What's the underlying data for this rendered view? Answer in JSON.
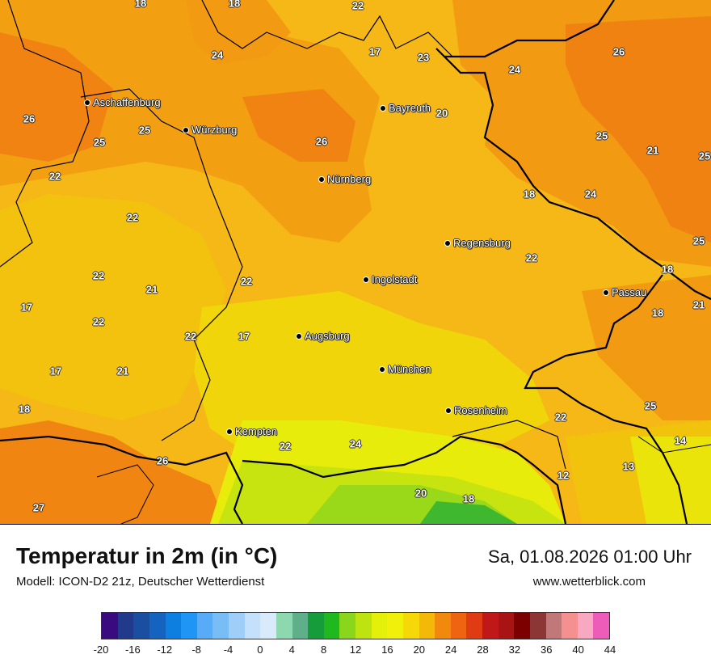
{
  "title": "Temperatur in 2m (in °C)",
  "model": "Modell: ICON-D2 21z, Deutscher Wetterdienst",
  "datetime": "Sa, 01.08.2026 01:00 Uhr",
  "website": "www.wetterblick.com",
  "cities": [
    {
      "name": "Aschaffenburg"
    },
    {
      "name": "Würzburg"
    },
    {
      "name": "Bayreuth"
    },
    {
      "name": "Nürnberg"
    },
    {
      "name": "Regensburg"
    },
    {
      "name": "Ingolstadt"
    },
    {
      "name": "Passau"
    },
    {
      "name": "Augsburg"
    },
    {
      "name": "München"
    },
    {
      "name": "Rosenheim"
    },
    {
      "name": "Kempten"
    }
  ],
  "temperatures": [
    "18",
    "18",
    "22",
    "24",
    "17",
    "23",
    "24",
    "26",
    "26",
    "25",
    "25",
    "25",
    "26",
    "20",
    "21",
    "25",
    "24",
    "22",
    "22",
    "18",
    "22",
    "25",
    "18",
    "21",
    "22",
    "22",
    "17",
    "18",
    "22",
    "22",
    "17",
    "21",
    "17",
    "21",
    "25",
    "18",
    "22",
    "14",
    "22",
    "24",
    "26",
    "13",
    "12",
    "20",
    "18",
    "27"
  ],
  "legend": {
    "labels": [
      "-20",
      "-16",
      "-12",
      "-8",
      "-4",
      "0",
      "4",
      "8",
      "12",
      "16",
      "20",
      "24",
      "28",
      "32",
      "36",
      "40",
      "44"
    ],
    "colors": [
      "#3a0a80",
      "#213a8c",
      "#1a4ea0",
      "#1463bf",
      "#0d7fe0",
      "#1f95f5",
      "#58acf7",
      "#79bdf7",
      "#9fcff8",
      "#c4e0fa",
      "#d8eafb",
      "#8ed8b0",
      "#5fb08a",
      "#179c3c",
      "#1fb81f",
      "#8ad61c",
      "#bde410",
      "#e4f00a",
      "#f0f00a",
      "#f6d808",
      "#f4b808",
      "#f18a0c",
      "#ee6410",
      "#e03c14",
      "#c01818",
      "#a81414",
      "#7d0000",
      "#8c3636",
      "#c07878",
      "#f49090",
      "#f8a8c0",
      "#ec5cb8"
    ]
  }
}
